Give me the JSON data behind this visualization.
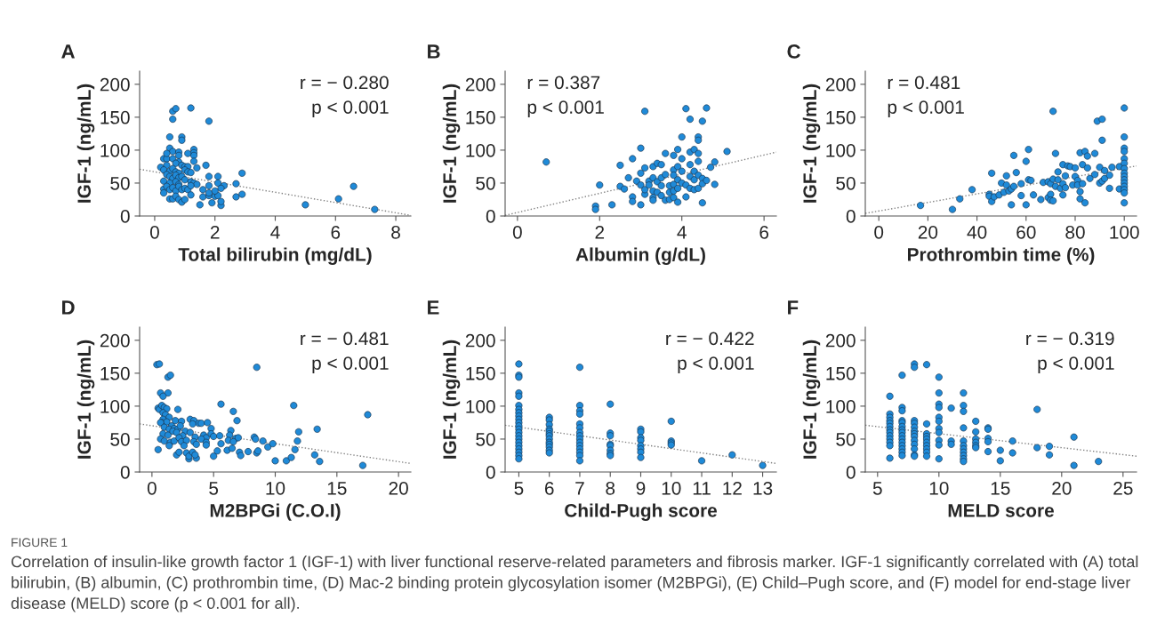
{
  "chart_data": [
    {
      "type": "scatter",
      "title": "A",
      "xlabel": "Total bilirubin (mg/dL)",
      "ylabel": "IGF-1 (ng/mL)",
      "xlim": [
        -0.5,
        8.5
      ],
      "ylim": [
        0,
        220
      ],
      "xticks": [
        0,
        2,
        4,
        6,
        8
      ],
      "yticks": [
        0,
        50,
        100,
        150,
        200
      ],
      "grid": false,
      "legend": false,
      "annotations": [
        "r = − 0.280",
        "p < 0.001"
      ],
      "series": [
        {
          "type": "scatter",
          "color": "#1f8ad8",
          "marker": "circle",
          "x": [
            0.6,
            0.7,
            0.6,
            1.2,
            1.8,
            0.5,
            0.9,
            0.9,
            0.5,
            0.6,
            1.3,
            1.3,
            1.3,
            0.8,
            0.8,
            1.1,
            0.3,
            0.4,
            0.6,
            0.4,
            1.7,
            1.3,
            0.2,
            0.4,
            0.8,
            0.7,
            0.9,
            1.0,
            1.1,
            1.4,
            0.3,
            0.5,
            0.6,
            0.7,
            0.8,
            1.0,
            1.1,
            1.2,
            0.4,
            0.5,
            0.6,
            0.7,
            0.8,
            0.9,
            1.0,
            1.8,
            2.1,
            2.9,
            0.3,
            0.5,
            0.7,
            0.8,
            1.2,
            1.3,
            1.4,
            2.1,
            2.7,
            0.3,
            0.4,
            0.5,
            0.6,
            0.7,
            0.8,
            0.9,
            1.0,
            1.1,
            1.2,
            1.8,
            2.3,
            2.2,
            0.3,
            0.5,
            0.6,
            0.7,
            0.8,
            0.9,
            1.0,
            1.2,
            1.5,
            1.6,
            1.6,
            1.8,
            1.8,
            1.9,
            2.0,
            2.1,
            2.0,
            2.2,
            2.2,
            2.7,
            2.9,
            5.0,
            6.1,
            6.6,
            7.3
          ],
          "values": [
            159,
            163,
            147,
            164,
            144,
            120,
            120,
            115,
            103,
            98,
            101,
            96,
            92,
            97,
            92,
            95,
            87,
            87,
            87,
            95,
            77,
            83,
            74,
            77,
            82,
            80,
            77,
            75,
            75,
            73,
            70,
            68,
            72,
            67,
            65,
            70,
            67,
            66,
            63,
            60,
            57,
            62,
            58,
            60,
            55,
            60,
            60,
            65,
            53,
            50,
            52,
            48,
            52,
            50,
            48,
            50,
            49,
            41,
            45,
            40,
            43,
            38,
            45,
            40,
            42,
            40,
            46,
            46,
            46,
            42,
            35,
            26,
            26,
            30,
            25,
            21,
            25,
            32,
            17,
            29,
            40,
            31,
            35,
            20,
            30,
            31,
            38,
            16,
            22,
            29,
            33,
            17,
            26,
            45,
            10
          ]
        },
        {
          "type": "line",
          "color": "#808080",
          "line_style": "dotted",
          "x": [
            -0.5,
            8.5
          ],
          "values": [
            71,
            1
          ]
        }
      ]
    },
    {
      "type": "scatter",
      "title": "B",
      "xlabel": "Albumin (g/dL)",
      "ylabel": "IGF-1 (ng/mL)",
      "xlim": [
        -0.3,
        6.3
      ],
      "ylim": [
        0,
        220
      ],
      "xticks": [
        0,
        2,
        4,
        6
      ],
      "yticks": [
        0,
        50,
        100,
        150,
        200
      ],
      "grid": false,
      "legend": false,
      "annotations": [
        "r = 0.387",
        "p < 0.001"
      ],
      "series": [
        {
          "type": "scatter",
          "color": "#1f8ad8",
          "marker": "circle",
          "x": [
            0.7,
            1.9,
            1.9,
            2.0,
            2.3,
            2.5,
            2.5,
            2.6,
            2.7,
            2.8,
            2.8,
            2.8,
            2.9,
            3.0,
            3.0,
            3.0,
            3.0,
            3.1,
            3.1,
            3.1,
            3.1,
            3.2,
            3.2,
            3.3,
            3.3,
            3.3,
            3.3,
            3.3,
            3.4,
            3.4,
            3.4,
            3.5,
            3.5,
            3.5,
            3.5,
            3.6,
            3.6,
            3.6,
            3.7,
            3.7,
            3.7,
            3.8,
            3.8,
            3.8,
            3.8,
            3.8,
            3.8,
            3.9,
            3.9,
            3.9,
            3.9,
            3.9,
            4.0,
            4.0,
            4.0,
            4.0,
            4.1,
            4.1,
            4.1,
            4.2,
            4.2,
            4.2,
            4.2,
            4.2,
            4.3,
            4.3,
            4.3,
            4.3,
            4.4,
            4.4,
            4.4,
            4.4,
            4.4,
            4.4,
            4.5,
            4.5,
            4.5,
            4.5,
            4.6,
            4.6,
            4.7,
            4.8,
            4.8,
            5.1
          ],
          "values": [
            82,
            15,
            10,
            47,
            17,
            77,
            45,
            41,
            58,
            87,
            29,
            22,
            53,
            103,
            65,
            47,
            17,
            159,
            73,
            33,
            40,
            53,
            47,
            58,
            75,
            28,
            24,
            38,
            80,
            52,
            36,
            78,
            58,
            46,
            31,
            95,
            63,
            24,
            46,
            36,
            25,
            92,
            70,
            62,
            48,
            38,
            28,
            101,
            75,
            55,
            42,
            21,
            120,
            87,
            68,
            50,
            163,
            47,
            29,
            147,
            97,
            78,
            60,
            42,
            101,
            68,
            55,
            40,
            120,
            115,
            95,
            83,
            62,
            42,
            144,
            57,
            49,
            20,
            164,
            54,
            74,
            82,
            48,
            98
          ]
        },
        {
          "type": "line",
          "color": "#808080",
          "line_style": "dotted",
          "x": [
            -0.3,
            6.3
          ],
          "values": [
            1,
            97
          ]
        }
      ]
    },
    {
      "type": "scatter",
      "title": "C",
      "xlabel": "Prothrombin time (%)",
      "ylabel": "IGF-1 (ng/mL)",
      "xlim": [
        -5.5,
        105
      ],
      "ylim": [
        0,
        220
      ],
      "xticks": [
        0,
        20,
        40,
        60,
        80,
        100
      ],
      "yticks": [
        0,
        50,
        100,
        150,
        200
      ],
      "grid": false,
      "legend": false,
      "annotations": [
        "r = 0.481",
        "p < 0.001"
      ],
      "series": [
        {
          "type": "scatter",
          "color": "#1f8ad8",
          "marker": "circle",
          "x": [
            17,
            30,
            33,
            38,
            45,
            45,
            46,
            46,
            47,
            49,
            50,
            51,
            52,
            52,
            53,
            54,
            54,
            55,
            55,
            56,
            58,
            58,
            60,
            60,
            61,
            61,
            62,
            63,
            66,
            67,
            69,
            69,
            70,
            70,
            70,
            71,
            71,
            71,
            72,
            72,
            73,
            73,
            74,
            75,
            75,
            75,
            76,
            76,
            77,
            78,
            79,
            80,
            80,
            81,
            81,
            82,
            82,
            82,
            83,
            83,
            84,
            84,
            85,
            85,
            86,
            88,
            88,
            89,
            90,
            90,
            91,
            91,
            91,
            92,
            92,
            94,
            94,
            95,
            98,
            98,
            100,
            100,
            100,
            100,
            100,
            100,
            100,
            100,
            100,
            100,
            100,
            100,
            100,
            100,
            100
          ],
          "values": [
            16,
            10,
            26,
            40,
            33,
            30,
            65,
            22,
            29,
            32,
            50,
            36,
            47,
            61,
            38,
            17,
            41,
            92,
            45,
            66,
            49,
            31,
            83,
            17,
            101,
            55,
            54,
            32,
            25,
            51,
            52,
            28,
            33,
            49,
            24,
            159,
            56,
            23,
            95,
            45,
            67,
            55,
            42,
            78,
            49,
            32,
            61,
            43,
            76,
            75,
            47,
            73,
            60,
            54,
            47,
            96,
            37,
            26,
            78,
            49,
            98,
            20,
            91,
            73,
            57,
            95,
            63,
            144,
            74,
            50,
            147,
            115,
            53,
            69,
            57,
            62,
            42,
            74,
            75,
            41,
            164,
            120,
            103,
            98,
            87,
            80,
            72,
            65,
            60,
            55,
            50,
            45,
            40,
            35,
            20
          ]
        },
        {
          "type": "line",
          "color": "#808080",
          "line_style": "dotted",
          "x": [
            -5.5,
            105
          ],
          "values": [
            4,
            76
          ]
        }
      ]
    },
    {
      "type": "scatter",
      "title": "D",
      "xlabel": "M2BPGi (C.O.I)",
      "ylabel": "IGF-1 (ng/mL)",
      "xlim": [
        -1,
        21
      ],
      "ylim": [
        0,
        220
      ],
      "xticks": [
        0,
        5,
        10,
        15,
        20
      ],
      "yticks": [
        0,
        50,
        100,
        150,
        200
      ],
      "grid": false,
      "legend": false,
      "annotations": [
        "r = − 0.481",
        "p < 0.001"
      ],
      "series": [
        {
          "type": "scatter",
          "color": "#1f8ad8",
          "marker": "circle",
          "x": [
            0.4,
            0.6,
            1.3,
            1.5,
            0.7,
            1.3,
            0.9,
            0.5,
            0.6,
            0.8,
            1.0,
            1.2,
            0.9,
            2.1,
            1.1,
            1.4,
            0.9,
            0.8,
            1.2,
            0.7,
            1.6,
            1.9,
            2.4,
            3.1,
            3.4,
            3.8,
            4.0,
            4.5,
            1.0,
            1.4,
            1.8,
            2.1,
            2.3,
            2.7,
            3.3,
            4.8,
            5.6,
            6.6,
            6.9,
            0.9,
            1.3,
            1.7,
            2.0,
            2.5,
            3.1,
            3.5,
            4.2,
            4.4,
            4.8,
            5.0,
            5.5,
            6.4,
            6.3,
            6.8,
            7.0,
            0.7,
            1.0,
            1.5,
            1.8,
            2.2,
            2.4,
            2.8,
            3.4,
            3.6,
            4.0,
            4.4,
            4.4,
            5.6,
            6.2,
            6.6,
            8.3,
            8.4,
            9.0,
            9.4,
            9.8,
            0.5,
            1.4,
            2.0,
            2.2,
            2.6,
            2.8,
            3.0,
            3.0,
            3.3,
            3.6,
            3.5,
            5.0,
            5.3,
            6.1,
            6.5,
            7.1,
            7.2,
            7.8,
            8.5,
            8.6,
            8.5,
            10.0,
            10.9,
            11.3,
            11.5,
            11.6,
            11.8,
            11.9,
            13.2,
            13.4,
            13.6,
            17.1,
            17.5
          ],
          "values": [
            163,
            164,
            144,
            147,
            120,
            120,
            115,
            97,
            95,
            101,
            98,
            96,
            90,
            95,
            87,
            83,
            80,
            75,
            76,
            75,
            70,
            78,
            77,
            80,
            78,
            74,
            74,
            75,
            68,
            65,
            66,
            65,
            70,
            62,
            73,
            66,
            103,
            92,
            78,
            58,
            56,
            62,
            60,
            55,
            60,
            53,
            56,
            52,
            58,
            54,
            55,
            63,
            56,
            51,
            52,
            50,
            47,
            45,
            47,
            52,
            46,
            48,
            46,
            42,
            50,
            45,
            41,
            43,
            48,
            46,
            53,
            50,
            47,
            38,
            43,
            34,
            40,
            26,
            30,
            40,
            29,
            20,
            24,
            30,
            21,
            26,
            24,
            32,
            33,
            36,
            30,
            25,
            31,
            29,
            32,
            159,
            17,
            17,
            22,
            101,
            34,
            47,
            61,
            26,
            65,
            16,
            10,
            87
          ]
        },
        {
          "type": "line",
          "color": "#808080",
          "line_style": "dotted",
          "x": [
            -1,
            21
          ],
          "values": [
            73,
            13
          ]
        }
      ]
    },
    {
      "type": "scatter",
      "title": "E",
      "xlabel": "Child-Pugh score",
      "ylabel": "IGF-1 (ng/mL)",
      "xlim": [
        4.55,
        13.45
      ],
      "ylim": [
        0,
        220
      ],
      "xticks": [
        5,
        6,
        7,
        8,
        9,
        10,
        11,
        12,
        13
      ],
      "yticks": [
        0,
        50,
        100,
        150,
        200
      ],
      "grid": false,
      "legend": false,
      "annotations": [
        "r = − 0.422",
        "p < 0.001"
      ],
      "series": [
        {
          "type": "scatter",
          "color": "#1f8ad8",
          "marker": "circle",
          "x": [
            5,
            5,
            5,
            5,
            5,
            5,
            5,
            5,
            5,
            5,
            5,
            5,
            5,
            5,
            5,
            5,
            5,
            5,
            5,
            5,
            5,
            5,
            6,
            6,
            6,
            6,
            6,
            6,
            6,
            6,
            6,
            6,
            6,
            6,
            6,
            7,
            7,
            7,
            7,
            7,
            7,
            7,
            7,
            7,
            7,
            7,
            7,
            7,
            7,
            7,
            8,
            8,
            8,
            8,
            8,
            8,
            8,
            8,
            9,
            9,
            9,
            9,
            9,
            9,
            9,
            9,
            10,
            10,
            10,
            10,
            11,
            12,
            13
          ],
          "values": [
            164,
            147,
            144,
            120,
            115,
            101,
            95,
            90,
            85,
            80,
            75,
            70,
            65,
            60,
            55,
            50,
            45,
            40,
            35,
            30,
            25,
            20,
            83,
            79,
            72,
            65,
            62,
            58,
            55,
            50,
            45,
            42,
            38,
            33,
            29,
            159,
            101,
            93,
            88,
            73,
            67,
            60,
            55,
            50,
            45,
            40,
            35,
            30,
            25,
            17,
            103,
            59,
            55,
            42,
            40,
            33,
            28,
            25,
            65,
            61,
            52,
            48,
            40,
            35,
            30,
            22,
            77,
            47,
            44,
            41,
            17,
            26,
            10
          ]
        },
        {
          "type": "line",
          "color": "#808080",
          "line_style": "dotted",
          "x": [
            4.55,
            13.45
          ],
          "values": [
            71,
            13
          ]
        }
      ]
    },
    {
      "type": "scatter",
      "title": "F",
      "xlabel": "MELD score",
      "ylabel": "IGF-1 (ng/mL)",
      "xlim": [
        4,
        26.1
      ],
      "ylim": [
        0,
        220
      ],
      "xticks": [
        5,
        10,
        15,
        20,
        25
      ],
      "yticks": [
        0,
        50,
        100,
        150,
        200
      ],
      "grid": false,
      "legend": false,
      "annotations": [
        "r = − 0.319",
        "p < 0.001",
        "FIGURE 1",
        "Correlation of insulin-like growth factor 1 (IGF-1) with liver functional reserve-related parameters and fibrosis marker. IGF-1 significantly correlated with (A) total bilirubin, (B) albumin, (C) prothrombin time, (D) Mac-2 binding protein glycosylation isomer (M2BPGi), (E) Child–Pugh score, and (F) model for end-stage liver disease (MELD) score (p < 0.001 for all)."
      ],
      "series": [
        {
          "type": "scatter",
          "color": "#1f8ad8",
          "marker": "circle",
          "x": [
            6,
            6,
            6,
            6,
            6,
            6,
            6,
            6,
            6,
            6,
            6,
            6,
            6,
            7,
            7,
            7,
            7,
            7,
            7,
            7,
            7,
            7,
            7,
            7,
            7,
            7,
            7,
            7,
            8,
            8,
            8,
            8,
            8,
            8,
            8,
            8,
            8,
            8,
            8,
            8,
            8,
            9,
            9,
            9,
            9,
            9,
            9,
            9,
            9,
            9,
            9,
            10,
            10,
            10,
            10,
            10,
            10,
            10,
            10,
            10,
            10,
            10,
            11,
            11,
            11,
            12,
            12,
            12,
            12,
            12,
            12,
            12,
            12,
            12,
            12,
            12,
            13,
            13,
            13,
            13,
            13,
            13,
            14,
            14,
            14,
            14,
            14,
            15,
            15,
            16,
            16,
            18,
            18,
            19,
            19,
            21,
            21,
            23
          ],
          "values": [
            115,
            88,
            83,
            78,
            74,
            69,
            64,
            60,
            55,
            50,
            45,
            40,
            21,
            147,
            98,
            93,
            78,
            75,
            69,
            64,
            60,
            55,
            50,
            45,
            40,
            35,
            30,
            25,
            164,
            159,
            78,
            74,
            68,
            62,
            58,
            54,
            48,
            42,
            35,
            26,
            24,
            163,
            73,
            58,
            54,
            50,
            45,
            40,
            35,
            30,
            24,
            144,
            120,
            103,
            98,
            83,
            77,
            66,
            60,
            48,
            41,
            20,
            97,
            47,
            42,
            120,
            101,
            92,
            67,
            47,
            40,
            35,
            30,
            25,
            20,
            16,
            77,
            61,
            50,
            45,
            40,
            37,
            67,
            65,
            51,
            46,
            31,
            33,
            17,
            47,
            29,
            95,
            37,
            39,
            26,
            53,
            10,
            16
          ]
        },
        {
          "type": "line",
          "color": "#808080",
          "line_style": "dotted",
          "x": [
            4,
            26.1
          ],
          "values": [
            71,
            24
          ]
        }
      ]
    }
  ]
}
